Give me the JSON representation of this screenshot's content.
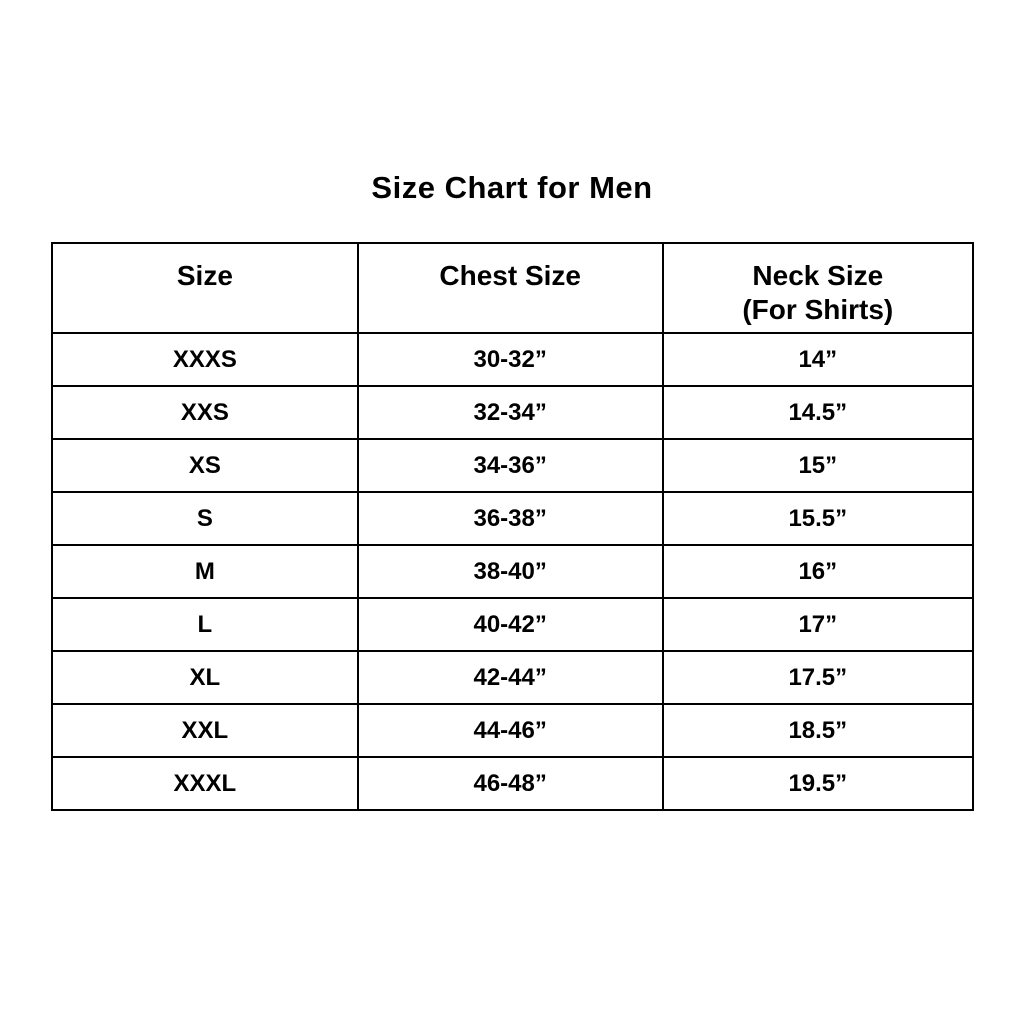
{
  "page": {
    "title": "Size Chart for Men"
  },
  "chart_data": {
    "type": "table",
    "title": "Size Chart for Men",
    "columns": [
      "Size",
      "Chest Size",
      "Neck Size (For Shirts)"
    ],
    "rows": [
      [
        "XXXS",
        "30-32”",
        "14”"
      ],
      [
        "XXS",
        "32-34”",
        "14.5”"
      ],
      [
        "XS",
        "34-36”",
        "15”"
      ],
      [
        "S",
        "36-38”",
        "15.5”"
      ],
      [
        "M",
        "38-40”",
        "16”"
      ],
      [
        "L",
        "40-42”",
        "17”"
      ],
      [
        "XL",
        "42-44”",
        "17.5”"
      ],
      [
        "XXL",
        "44-46”",
        "18.5”"
      ],
      [
        "XXXL",
        "46-48”",
        "19.5”"
      ]
    ]
  },
  "table": {
    "headers": [
      {
        "label": "Size"
      },
      {
        "label": "Chest Size"
      },
      {
        "label": "Neck Size",
        "sublabel": "(For Shirts)"
      }
    ],
    "rows": [
      {
        "size": "XXXS",
        "chest": "30-32”",
        "neck": "14”"
      },
      {
        "size": "XXS",
        "chest": "32-34”",
        "neck": "14.5”"
      },
      {
        "size": "XS",
        "chest": "34-36”",
        "neck": "15”"
      },
      {
        "size": "S",
        "chest": "36-38”",
        "neck": "15.5”"
      },
      {
        "size": "M",
        "chest": "38-40”",
        "neck": "16”"
      },
      {
        "size": "L",
        "chest": "40-42”",
        "neck": "17”"
      },
      {
        "size": "XL",
        "chest": "42-44”",
        "neck": "17.5”"
      },
      {
        "size": "XXL",
        "chest": "44-46”",
        "neck": "18.5”"
      },
      {
        "size": "XXXL",
        "chest": "46-48”",
        "neck": "19.5”"
      }
    ]
  },
  "colors": {
    "text": "#000000",
    "border": "#000000",
    "background": "#ffffff"
  }
}
